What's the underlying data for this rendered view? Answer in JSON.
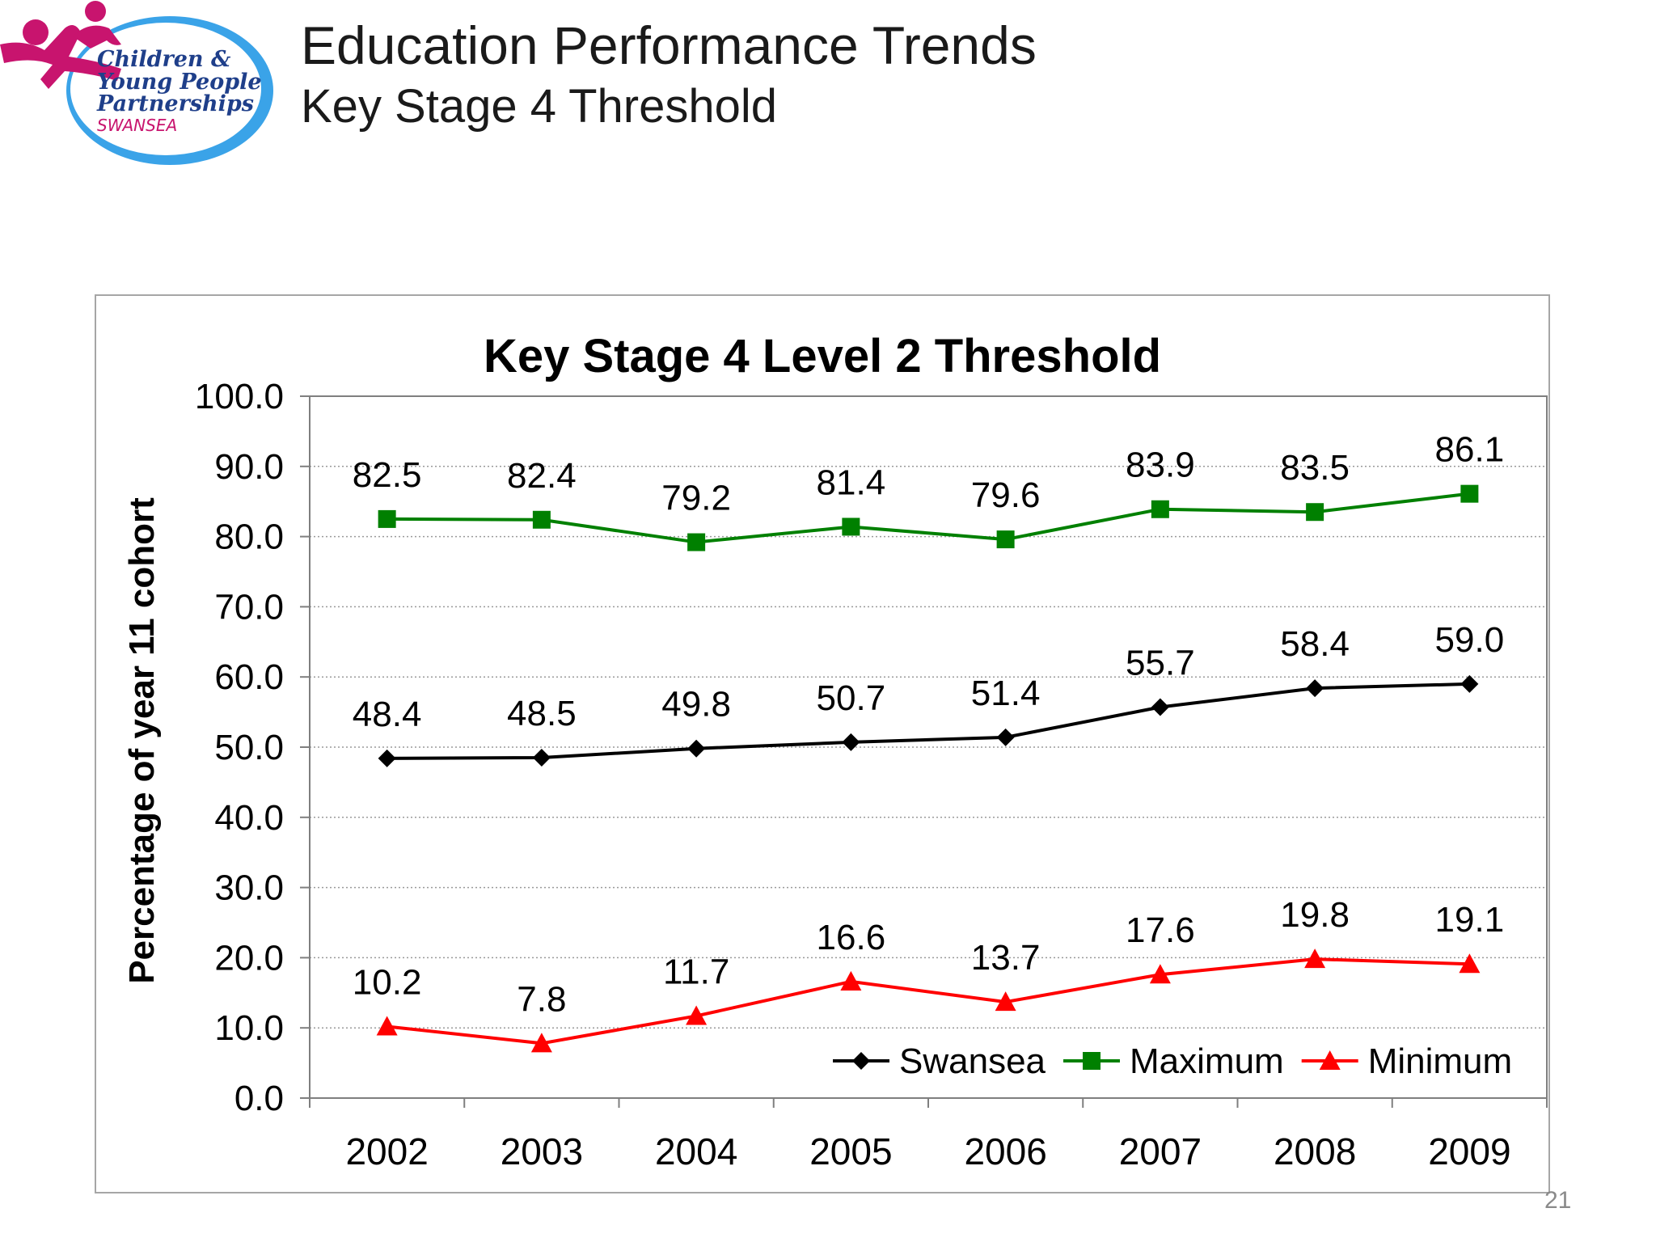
{
  "header": {
    "logo_lines": [
      "Children &",
      "Young People",
      "Partnerships",
      "SWANSEA"
    ],
    "title": "Education Performance Trends",
    "subtitle": "Key Stage 4 Threshold"
  },
  "page_number": "21",
  "colors": {
    "swansea": "#000000",
    "maximum": "#008000",
    "minimum": "#ff0000",
    "logo_blue": "#3aa3e8",
    "logo_magenta": "#c8146e"
  },
  "chart_data": {
    "type": "line",
    "title": "Key Stage 4 Level 2 Threshold",
    "xlabel": "",
    "ylabel": "Percentage of year 11 cohort",
    "categories": [
      "2002",
      "2003",
      "2004",
      "2005",
      "2006",
      "2007",
      "2008",
      "2009"
    ],
    "ylim": [
      0,
      100
    ],
    "yticks": [
      "0.0",
      "10.0",
      "20.0",
      "30.0",
      "40.0",
      "50.0",
      "60.0",
      "70.0",
      "80.0",
      "90.0",
      "100.0"
    ],
    "grid": true,
    "legend_position": "bottom-right",
    "series": [
      {
        "name": "Swansea",
        "marker": "diamond",
        "color": "#000000",
        "values": [
          48.4,
          48.5,
          49.8,
          50.7,
          51.4,
          55.7,
          58.4,
          59.0
        ],
        "labels": [
          "48.4",
          "48.5",
          "49.8",
          "50.7",
          "51.4",
          "55.7",
          "58.4",
          "59.0"
        ]
      },
      {
        "name": "Maximum",
        "marker": "square",
        "color": "#008000",
        "values": [
          82.5,
          82.4,
          79.2,
          81.4,
          79.6,
          83.9,
          83.5,
          86.1
        ],
        "labels": [
          "82.5",
          "82.4",
          "79.2",
          "81.4",
          "79.6",
          "83.9",
          "83.5",
          "86.1"
        ]
      },
      {
        "name": "Minimum",
        "marker": "triangle",
        "color": "#ff0000",
        "values": [
          10.2,
          7.8,
          11.7,
          16.6,
          13.7,
          17.6,
          19.8,
          19.1
        ],
        "labels": [
          "10.2",
          "7.8",
          "11.7",
          "16.6",
          "13.7",
          "17.6",
          "19.8",
          "19.1"
        ]
      }
    ]
  }
}
